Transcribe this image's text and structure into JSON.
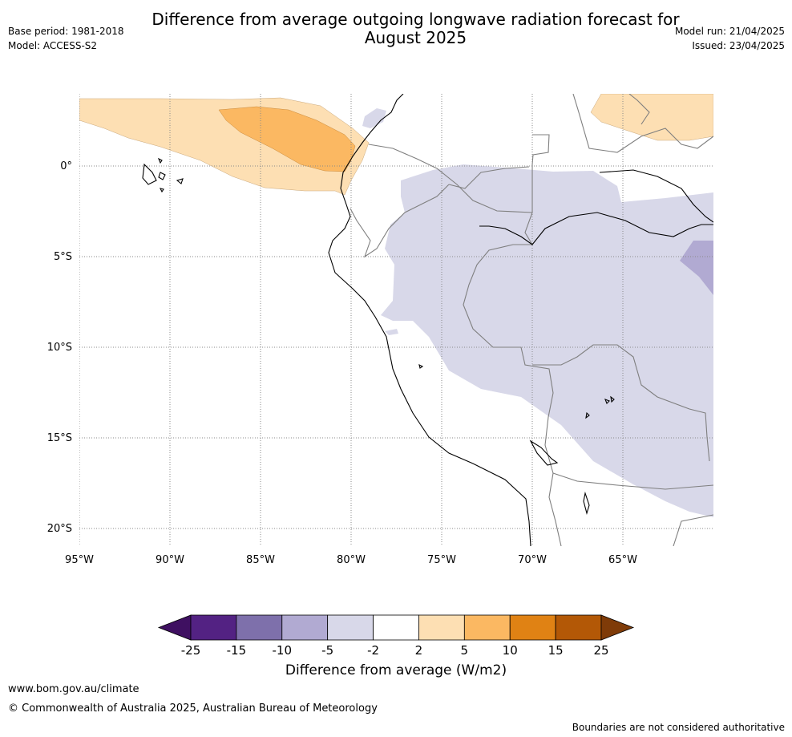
{
  "header": {
    "title_line1": "Difference from average outgoing longwave radiation forecast for",
    "title_line2": "August 2025",
    "base_period": "Base period: 1981-2018",
    "model": "Model: ACCESS-S2",
    "model_run": "Model run: 21/04/2025",
    "issued": "Issued: 23/04/2025"
  },
  "map": {
    "lon_labels": [
      "95°W",
      "90°W",
      "85°W",
      "80°W",
      "75°W",
      "70°W",
      "65°W"
    ],
    "lat_labels": [
      "0°",
      "5°S",
      "10°S",
      "15°S",
      "20°S"
    ],
    "colors": {
      "pos_2_5": "#fddfb3",
      "pos_5_10": "#fbb862",
      "neg_2_5": "#d8d8e9",
      "neg_5_10": "#b1aad2",
      "coast": "#000000",
      "border": "#7f7f7f",
      "grid": "#8a8a8a"
    }
  },
  "colorbar": {
    "title": "Difference from average (W/m2)",
    "ticks": [
      "-25",
      "-15",
      "-10",
      "-5",
      "-2",
      "2",
      "5",
      "10",
      "15",
      "25"
    ],
    "colors": [
      "#3f1061",
      "#532283",
      "#7e70ab",
      "#b1aad2",
      "#d8d8e9",
      "#ffffff",
      "#fddfb3",
      "#fbb862",
      "#e08214",
      "#b35806",
      "#7f3b08"
    ]
  },
  "footer": {
    "url": "www.bom.gov.au/climate",
    "copyright": "© Commonwealth of Australia 2025, Australian Bureau of Meteorology",
    "disclaimer": "Boundaries are not considered authoritative"
  }
}
